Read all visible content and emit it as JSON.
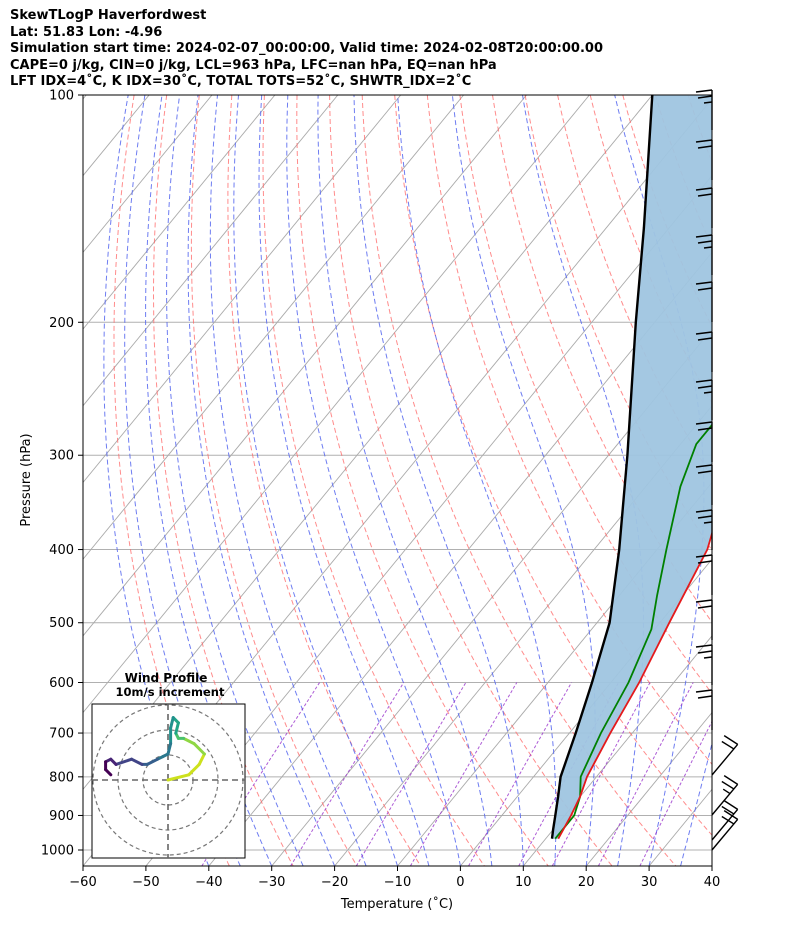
{
  "header": {
    "line1": "SkewTLogP Haverfordwest",
    "line2": "Lat: 51.83   Lon: -4.96",
    "line3": "Simulation start time: 2024-02-07_00:00:00, Valid time: 2024-02-08T20:00:00.00",
    "line4": "CAPE=0 j/kg, CIN=0 j/kg, LCL=963 hPa, LFC=nan hPa, EQ=nan hPa",
    "line5": "LFT IDX=4˚C, K IDX=30˚C, TOTAL TOTS=52˚C, SHWTR_IDX=2˚C"
  },
  "chart_data": {
    "type": "line",
    "xlabel": "Temperature (˚C)",
    "ylabel": "Pressure (hPa)",
    "xlim": [
      -60,
      40
    ],
    "ylim": [
      1050,
      100
    ],
    "y_scale": "log",
    "x_ticks": [
      "−60",
      "−50",
      "−40",
      "−30",
      "−20",
      "−10",
      "0",
      "10",
      "20",
      "30",
      "40"
    ],
    "y_ticks": [
      "1000",
      "900",
      "800",
      "700",
      "600",
      "500",
      "400",
      "300",
      "200",
      "100"
    ],
    "grid": true,
    "colors": {
      "temperature": "#e41a1c",
      "dewpoint": "#008000",
      "parcel": "#000000",
      "fill": "#9fc5e0",
      "dry_adiabat": "#ff6666",
      "moist_adiabat": "#5566ee",
      "mixing_ratio": "#9933cc",
      "isotherm": "#aaaaaa"
    },
    "series": [
      {
        "key": "temperature",
        "points": [
          [
            12,
            966
          ],
          [
            11,
            900
          ],
          [
            10,
            850
          ],
          [
            8.5,
            800
          ],
          [
            6.5,
            700
          ],
          [
            4.5,
            600
          ],
          [
            1.5,
            500
          ],
          [
            -2,
            400
          ],
          [
            -9,
            310
          ],
          [
            -13,
            270
          ],
          [
            -11.5,
            258
          ],
          [
            -10,
            245
          ],
          [
            -9,
            235
          ],
          [
            -9,
            215
          ],
          [
            -6,
            195
          ],
          [
            -4,
            175
          ],
          [
            -4,
            150
          ],
          [
            -6,
            130
          ],
          [
            -5,
            110
          ],
          [
            -4,
            100
          ]
        ]
      },
      {
        "key": "dewpoint",
        "points": [
          [
            11.5,
            966
          ],
          [
            11.5,
            900
          ],
          [
            10,
            850
          ],
          [
            7.5,
            800
          ],
          [
            5,
            700
          ],
          [
            2.8,
            600
          ],
          [
            -0.5,
            510
          ],
          [
            -4,
            460
          ],
          [
            -8.5,
            400
          ],
          [
            -14.5,
            330
          ],
          [
            -17.5,
            290
          ],
          [
            -17.5,
            270
          ],
          [
            -17,
            255
          ],
          [
            -20,
            235
          ],
          [
            -22,
            220
          ],
          [
            -24,
            205
          ],
          [
            -24.5,
            200
          ],
          [
            -24,
            190
          ],
          [
            -23,
            180
          ],
          [
            -25,
            165
          ],
          [
            -24,
            150
          ],
          [
            -22,
            130
          ],
          [
            -18,
            110
          ],
          [
            -15,
            100
          ]
        ]
      },
      {
        "key": "parcel",
        "points": [
          [
            11,
            966
          ],
          [
            10,
            940
          ],
          [
            8.5,
            900
          ],
          [
            6.5,
            850
          ],
          [
            4.3,
            800
          ],
          [
            1,
            700
          ],
          [
            -3,
            600
          ],
          [
            -8,
            500
          ],
          [
            -16,
            400
          ],
          [
            -27,
            300
          ],
          [
            -43,
            200
          ],
          [
            -54,
            150
          ],
          [
            -70,
            100
          ]
        ]
      }
    ],
    "wind_barbs_note": "barbs along right edge",
    "inset": {
      "title": "Wind Profile",
      "subtitle": "10m/s increment",
      "trace": [
        [
          0,
          0
        ],
        [
          8,
          2
        ],
        [
          12,
          6
        ],
        [
          14,
          10
        ],
        [
          10,
          14
        ],
        [
          6,
          16
        ],
        [
          4,
          16
        ],
        [
          3,
          18
        ],
        [
          4,
          22
        ],
        [
          2,
          24
        ],
        [
          1,
          20
        ],
        [
          1,
          14
        ],
        [
          0,
          10
        ],
        [
          -2,
          9
        ],
        [
          -4,
          8
        ],
        [
          -8,
          6
        ],
        [
          -10,
          6
        ],
        [
          -14,
          8
        ],
        [
          -20,
          6
        ],
        [
          -22,
          8
        ],
        [
          -24,
          7
        ],
        [
          -24,
          4
        ],
        [
          -22,
          2
        ]
      ]
    }
  }
}
